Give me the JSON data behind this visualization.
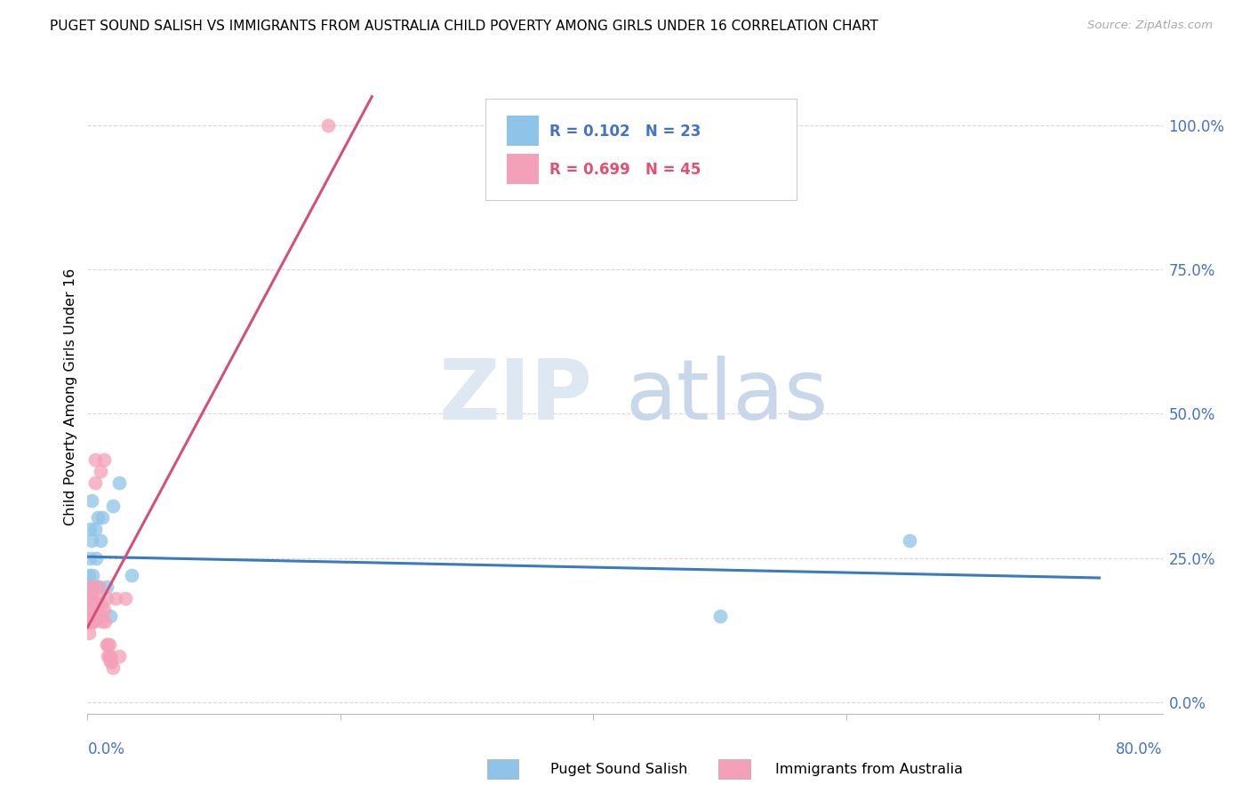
{
  "title": "PUGET SOUND SALISH VS IMMIGRANTS FROM AUSTRALIA CHILD POVERTY AMONG GIRLS UNDER 16 CORRELATION CHART",
  "source": "Source: ZipAtlas.com",
  "ylabel": "Child Poverty Among Girls Under 16",
  "ylabel_right_ticks": [
    "0.0%",
    "25.0%",
    "50.0%",
    "75.0%",
    "100.0%"
  ],
  "ylabel_right_vals": [
    0.0,
    0.25,
    0.5,
    0.75,
    1.0
  ],
  "legend_blue_r": "0.102",
  "legend_blue_n": "23",
  "legend_pink_r": "0.699",
  "legend_pink_n": "45",
  "legend_blue_label": "Puget Sound Salish",
  "legend_pink_label": "Immigrants from Australia",
  "blue_color": "#8ec4e8",
  "pink_color": "#f4a0b8",
  "blue_line_color": "#3a7abf",
  "pink_line_color": "#d4507a",
  "watermark_zip": "ZIP",
  "watermark_atlas": "atlas",
  "blue_scatter_x": [
    0.0008,
    0.001,
    0.0015,
    0.002,
    0.002,
    0.003,
    0.003,
    0.004,
    0.004,
    0.005,
    0.006,
    0.007,
    0.008,
    0.009,
    0.01,
    0.012,
    0.015,
    0.018,
    0.02,
    0.025,
    0.035,
    0.5,
    0.65
  ],
  "blue_scatter_y": [
    0.2,
    0.22,
    0.18,
    0.3,
    0.25,
    0.35,
    0.28,
    0.22,
    0.2,
    0.15,
    0.3,
    0.25,
    0.32,
    0.2,
    0.28,
    0.32,
    0.2,
    0.15,
    0.34,
    0.38,
    0.22,
    0.15,
    0.28
  ],
  "pink_scatter_x": [
    0.0003,
    0.0005,
    0.001,
    0.001,
    0.0015,
    0.002,
    0.002,
    0.002,
    0.003,
    0.003,
    0.003,
    0.004,
    0.004,
    0.004,
    0.005,
    0.005,
    0.005,
    0.006,
    0.006,
    0.007,
    0.007,
    0.008,
    0.008,
    0.009,
    0.01,
    0.01,
    0.011,
    0.012,
    0.013,
    0.013,
    0.014,
    0.015,
    0.015,
    0.016,
    0.016,
    0.017,
    0.017,
    0.018,
    0.018,
    0.019,
    0.02,
    0.022,
    0.025,
    0.03,
    0.19
  ],
  "pink_scatter_y": [
    0.18,
    0.15,
    0.12,
    0.16,
    0.14,
    0.15,
    0.18,
    0.2,
    0.14,
    0.16,
    0.18,
    0.2,
    0.14,
    0.18,
    0.16,
    0.14,
    0.17,
    0.38,
    0.42,
    0.15,
    0.17,
    0.17,
    0.18,
    0.2,
    0.15,
    0.4,
    0.17,
    0.14,
    0.42,
    0.16,
    0.14,
    0.1,
    0.18,
    0.08,
    0.1,
    0.08,
    0.1,
    0.07,
    0.08,
    0.07,
    0.06,
    0.18,
    0.08,
    0.18,
    1.0
  ],
  "xlim": [
    0.0,
    0.85
  ],
  "ylim": [
    -0.02,
    1.08
  ],
  "background_color": "#ffffff",
  "grid_color": "#d8d8d8"
}
